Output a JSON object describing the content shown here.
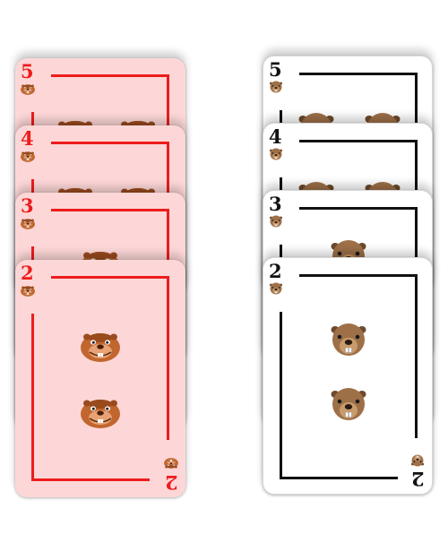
{
  "decks": [
    {
      "name": "pink-deck",
      "theme": "pink",
      "card_color": "#fdd7d7",
      "ink_color": "#ee1c1c",
      "face": "groundhog",
      "cards": [
        {
          "rank": "5"
        },
        {
          "rank": "4"
        },
        {
          "rank": "3"
        },
        {
          "rank": "2"
        }
      ]
    },
    {
      "name": "white-deck",
      "theme": "white",
      "card_color": "#ffffff",
      "ink_color": "#111111",
      "face": "beaver",
      "cards": [
        {
          "rank": "5"
        },
        {
          "rank": "4"
        },
        {
          "rank": "3"
        },
        {
          "rank": "2"
        }
      ]
    }
  ]
}
